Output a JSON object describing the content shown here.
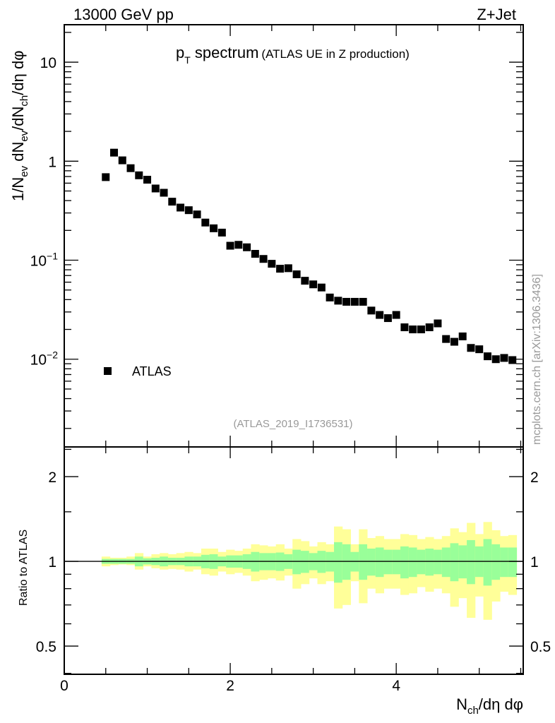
{
  "header": {
    "energy": "13000 GeV pp",
    "process": "Z+Jet"
  },
  "chart_data": [
    {
      "type": "scatter",
      "panel": "main",
      "title": {
        "p": "p",
        "sub": "T",
        "main": " spectrum",
        "small": "(ATLAS UE in Z production)"
      },
      "ylabel_parts": [
        [
          "1/N",
          ""
        ],
        [
          "ev",
          "sub"
        ],
        [
          " dN",
          ""
        ],
        [
          "ev",
          "sub"
        ],
        [
          "/dN",
          ""
        ],
        [
          "ch",
          "sub"
        ],
        [
          "/dη dφ",
          ""
        ]
      ],
      "xlabel_parts": [
        [
          "N",
          ""
        ],
        [
          "ch",
          "sub"
        ],
        [
          "/dη dφ",
          ""
        ]
      ],
      "xlim": [
        0,
        5.53
      ],
      "ylim": [
        0.0013,
        23.9
      ],
      "yscale": "log",
      "yticks": [
        {
          "v": 10,
          "base": "10",
          "exp": ""
        },
        {
          "v": 1,
          "base": "1",
          "exp": ""
        },
        {
          "v": 0.1,
          "base": "10",
          "exp": "−1"
        },
        {
          "v": 0.01,
          "base": "10",
          "exp": "−2"
        }
      ],
      "xticks": [
        {
          "v": 0,
          "label": "0"
        },
        {
          "v": 2,
          "label": "2"
        },
        {
          "v": 4,
          "label": "4"
        }
      ],
      "legend": {
        "label": "ATLAS",
        "position": "bottom-left"
      },
      "analysis_id": "(ATLAS_2019_I1736531)",
      "watermark": "mcplots.cern.ch [arXiv:1306.3436]",
      "series": [
        {
          "name": "ATLAS",
          "x": [
            0.5,
            0.6,
            0.7,
            0.8,
            0.9,
            1.0,
            1.1,
            1.2,
            1.3,
            1.4,
            1.5,
            1.6,
            1.7,
            1.8,
            1.9,
            2.0,
            2.1,
            2.2,
            2.3,
            2.4,
            2.5,
            2.6,
            2.7,
            2.8,
            2.9,
            3.0,
            3.1,
            3.2,
            3.3,
            3.4,
            3.5,
            3.6,
            3.7,
            3.8,
            3.9,
            4.0,
            4.1,
            4.2,
            4.3,
            4.4,
            4.5,
            4.6,
            4.7,
            4.8,
            4.9,
            5.0,
            5.1,
            5.2,
            5.3,
            5.4
          ],
          "y": [
            0.69,
            1.22,
            1.02,
            0.85,
            0.72,
            0.65,
            0.53,
            0.48,
            0.39,
            0.34,
            0.32,
            0.29,
            0.24,
            0.21,
            0.19,
            0.14,
            0.143,
            0.135,
            0.116,
            0.103,
            0.092,
            0.082,
            0.083,
            0.072,
            0.062,
            0.057,
            0.053,
            0.042,
            0.039,
            0.038,
            0.038,
            0.038,
            0.031,
            0.028,
            0.026,
            0.028,
            0.021,
            0.02,
            0.02,
            0.021,
            0.023,
            0.016,
            0.015,
            0.017,
            0.013,
            0.0126,
            0.0107,
            0.01,
            0.0103,
            0.0098
          ]
        }
      ]
    },
    {
      "type": "area",
      "panel": "ratio",
      "ylabel": "Ratio to ATLAS",
      "yscale": "log",
      "ylim": [
        0.397,
        2.55
      ],
      "yticks": [
        {
          "v": 2,
          "label": "2"
        },
        {
          "v": 1,
          "label": "1"
        },
        {
          "v": 0.5,
          "label": "0.5"
        }
      ],
      "bin_width": 0.1,
      "colors": {
        "outer": "#ffff99",
        "inner": "#99ff99",
        "line": "#000000"
      },
      "outer_upper": [
        1.04,
        1.03,
        1.03,
        1.04,
        1.07,
        1.04,
        1.06,
        1.07,
        1.06,
        1.07,
        1.08,
        1.07,
        1.11,
        1.11,
        1.08,
        1.1,
        1.09,
        1.11,
        1.15,
        1.14,
        1.13,
        1.15,
        1.11,
        1.2,
        1.18,
        1.13,
        1.17,
        1.15,
        1.33,
        1.3,
        1.15,
        1.3,
        1.21,
        1.23,
        1.2,
        1.2,
        1.25,
        1.24,
        1.2,
        1.22,
        1.2,
        1.23,
        1.31,
        1.27,
        1.37,
        1.25,
        1.38,
        1.29,
        1.23,
        1.24
      ],
      "outer_lower": [
        0.96,
        0.97,
        0.975,
        0.97,
        0.935,
        0.96,
        0.945,
        0.935,
        0.94,
        0.935,
        0.92,
        0.935,
        0.9,
        0.89,
        0.92,
        0.9,
        0.91,
        0.89,
        0.85,
        0.86,
        0.87,
        0.855,
        0.89,
        0.8,
        0.83,
        0.87,
        0.83,
        0.85,
        0.68,
        0.7,
        0.85,
        0.71,
        0.8,
        0.77,
        0.8,
        0.8,
        0.76,
        0.77,
        0.81,
        0.78,
        0.8,
        0.77,
        0.69,
        0.74,
        0.63,
        0.75,
        0.62,
        0.72,
        0.78,
        0.76
      ],
      "inner_upper": [
        1.02,
        1.02,
        1.02,
        1.02,
        1.04,
        1.025,
        1.03,
        1.04,
        1.03,
        1.03,
        1.04,
        1.04,
        1.055,
        1.06,
        1.04,
        1.05,
        1.05,
        1.06,
        1.08,
        1.07,
        1.07,
        1.075,
        1.06,
        1.1,
        1.09,
        1.07,
        1.09,
        1.08,
        1.17,
        1.15,
        1.08,
        1.15,
        1.11,
        1.12,
        1.1,
        1.1,
        1.13,
        1.12,
        1.1,
        1.11,
        1.1,
        1.12,
        1.16,
        1.14,
        1.19,
        1.13,
        1.2,
        1.15,
        1.12,
        1.12
      ],
      "inner_lower": [
        0.98,
        0.98,
        0.98,
        0.98,
        0.96,
        0.975,
        0.97,
        0.96,
        0.97,
        0.97,
        0.96,
        0.96,
        0.945,
        0.94,
        0.96,
        0.95,
        0.95,
        0.94,
        0.92,
        0.93,
        0.93,
        0.925,
        0.94,
        0.9,
        0.91,
        0.93,
        0.91,
        0.92,
        0.84,
        0.86,
        0.92,
        0.86,
        0.89,
        0.88,
        0.9,
        0.9,
        0.87,
        0.88,
        0.9,
        0.89,
        0.9,
        0.88,
        0.85,
        0.87,
        0.83,
        0.88,
        0.82,
        0.86,
        0.88,
        0.88
      ]
    }
  ]
}
